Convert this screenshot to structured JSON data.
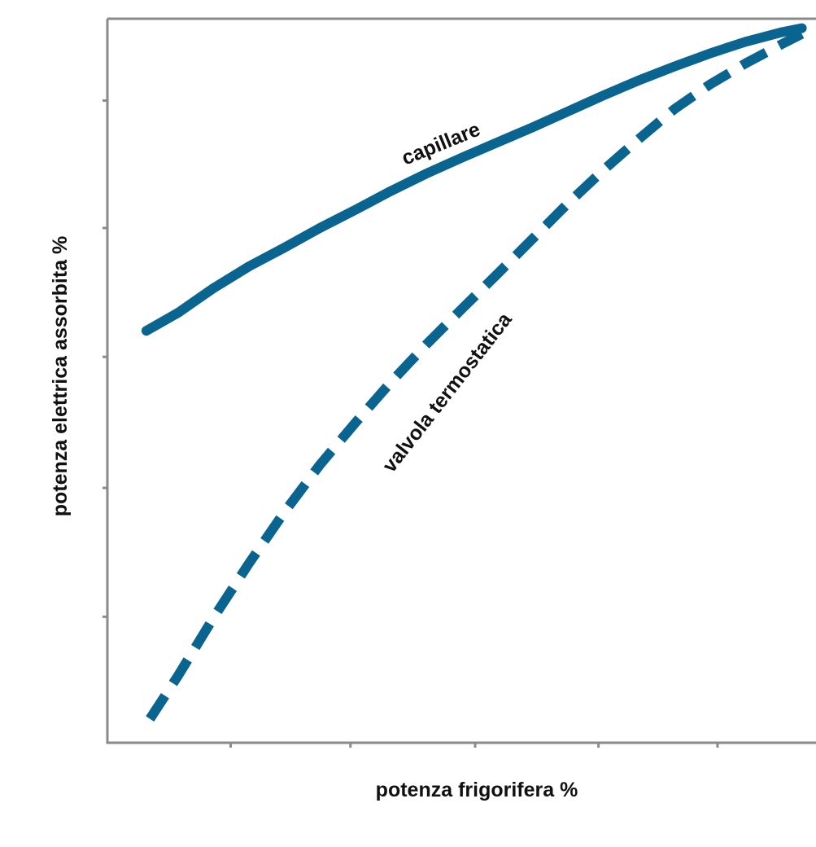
{
  "chart_data": {
    "type": "line",
    "xlabel": "potenza frigorifera %",
    "ylabel": "potenza elettrica assorbita %",
    "xlim": [
      0,
      100
    ],
    "ylim": [
      0,
      100
    ],
    "grid": false,
    "legend": "none",
    "colors": {
      "curve": "#0a6490",
      "axis": "#8a8a8a",
      "text": "#111111"
    },
    "series": [
      {
        "name": "capillare",
        "line_style": "solid",
        "x": [
          5.5,
          10,
          15,
          20,
          25,
          30,
          35,
          40,
          45,
          50,
          55,
          60,
          65,
          70,
          75,
          80,
          85,
          90,
          95,
          98
        ],
        "y": [
          56.9,
          59.4,
          62.8,
          65.8,
          68.4,
          71.1,
          73.6,
          76.2,
          78.6,
          80.8,
          82.9,
          85.0,
          87.2,
          89.4,
          91.5,
          93.4,
          95.2,
          96.8,
          98.1,
          98.7
        ]
      },
      {
        "name": "valvola termostatica",
        "line_style": "dashed",
        "x": [
          6,
          10,
          15,
          20,
          25,
          30,
          35,
          40,
          45,
          50,
          55,
          60,
          65,
          70,
          75,
          80,
          85,
          90,
          95,
          98
        ],
        "y": [
          3.3,
          9.3,
          17.3,
          24.8,
          31.9,
          38.4,
          44.2,
          49.8,
          55.0,
          59.9,
          64.7,
          69.6,
          74.5,
          79.1,
          83.4,
          87.5,
          90.9,
          93.8,
          96.4,
          97.9
        ]
      }
    ]
  }
}
